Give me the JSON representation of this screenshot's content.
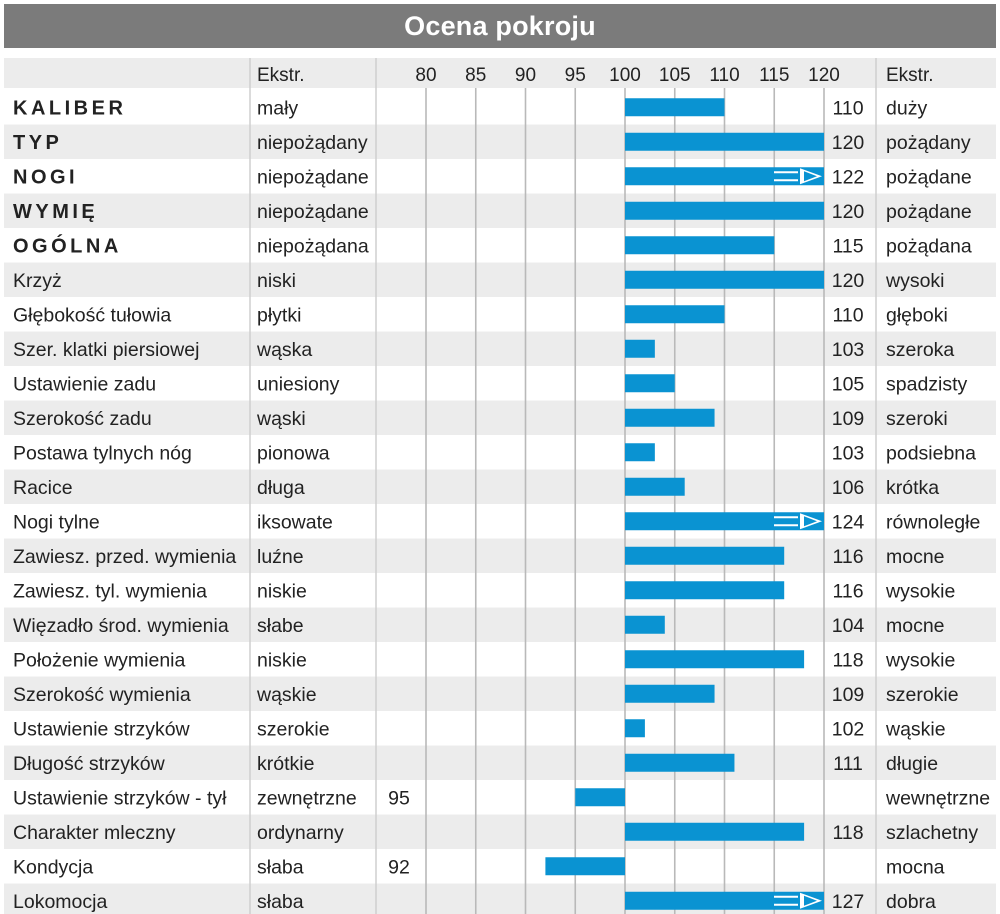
{
  "title": "Ocena pokroju",
  "header": {
    "ext_left": "Ekstr.",
    "ext_right": "Ekstr."
  },
  "colors": {
    "bar": "#0a93d2",
    "title_bg": "#7b7b7b",
    "row_alt": "#ececec",
    "grid": "#b9b9b9"
  },
  "chart_data": {
    "type": "bar",
    "orientation": "horizontal",
    "title": "Ocena pokroju",
    "xlim": [
      80,
      120
    ],
    "baseline": 100,
    "ticks": [
      80,
      85,
      90,
      95,
      100,
      105,
      110,
      115,
      120
    ],
    "tick_labels": [
      "80",
      "85",
      "90",
      "95",
      "100",
      "105",
      "110",
      "115",
      "120"
    ],
    "grid": true,
    "rows": [
      {
        "label": "KALIBER",
        "bold": true,
        "left": "mały",
        "right": "duży",
        "value": 110,
        "value_label": "110"
      },
      {
        "label": "TYP",
        "bold": true,
        "left": "niepożądany",
        "right": "pożądany",
        "value": 120,
        "value_label": "120"
      },
      {
        "label": "NOGI",
        "bold": true,
        "left": "niepożądane",
        "right": "pożądane",
        "value": 122,
        "value_label": "122",
        "overflow": true
      },
      {
        "label": "WYMIĘ",
        "bold": true,
        "left": "niepożądane",
        "right": "pożądane",
        "value": 120,
        "value_label": "120"
      },
      {
        "label": "OGÓLNA",
        "bold": true,
        "left": "niepożądana",
        "right": "pożądana",
        "value": 115,
        "value_label": "115"
      },
      {
        "label": "Krzyż",
        "bold": false,
        "left": "niski",
        "right": "wysoki",
        "value": 120,
        "value_label": "120"
      },
      {
        "label": "Głębokość tułowia",
        "bold": false,
        "left": "płytki",
        "right": "głęboki",
        "value": 110,
        "value_label": "110"
      },
      {
        "label": "Szer. klatki piersiowej",
        "bold": false,
        "left": "wąska",
        "right": "szeroka",
        "value": 103,
        "value_label": "103"
      },
      {
        "label": "Ustawienie zadu",
        "bold": false,
        "left": "uniesiony",
        "right": "spadzisty",
        "value": 105,
        "value_label": "105"
      },
      {
        "label": "Szerokość zadu",
        "bold": false,
        "left": "wąski",
        "right": "szeroki",
        "value": 109,
        "value_label": "109"
      },
      {
        "label": "Postawa tylnych nóg",
        "bold": false,
        "left": "pionowa",
        "right": "podsiebna",
        "value": 103,
        "value_label": "103"
      },
      {
        "label": "Racice",
        "bold": false,
        "left": "długa",
        "right": "krótka",
        "value": 106,
        "value_label": "106"
      },
      {
        "label": "Nogi tylne",
        "bold": false,
        "left": "iksowate",
        "right": "równoległe",
        "value": 124,
        "value_label": "124",
        "overflow": true
      },
      {
        "label": "Zawiesz. przed. wymienia",
        "bold": false,
        "left": "luźne",
        "right": "mocne",
        "value": 116,
        "value_label": "116"
      },
      {
        "label": "Zawiesz. tyl. wymienia",
        "bold": false,
        "left": "niskie",
        "right": "wysokie",
        "value": 116,
        "value_label": "116"
      },
      {
        "label": "Więzadło środ. wymienia",
        "bold": false,
        "left": "słabe",
        "right": "mocne",
        "value": 104,
        "value_label": "104"
      },
      {
        "label": "Położenie wymienia",
        "bold": false,
        "left": "niskie",
        "right": "wysokie",
        "value": 118,
        "value_label": "118"
      },
      {
        "label": "Szerokość wymienia",
        "bold": false,
        "left": "wąskie",
        "right": "szerokie",
        "value": 109,
        "value_label": "109"
      },
      {
        "label": "Ustawienie strzyków",
        "bold": false,
        "left": "szerokie",
        "right": "wąskie",
        "value": 102,
        "value_label": "102"
      },
      {
        "label": "Długość strzyków",
        "bold": false,
        "left": "krótkie",
        "right": "długie",
        "value": 111,
        "value_label": "111"
      },
      {
        "label": "Ustawienie strzyków - tył",
        "bold": false,
        "left": "zewnętrzne",
        "right": "wewnętrzne",
        "value": 95,
        "value_label": "95"
      },
      {
        "label": "Charakter mleczny",
        "bold": false,
        "left": "ordynarny",
        "right": "szlachetny",
        "value": 118,
        "value_label": "118"
      },
      {
        "label": "Kondycja",
        "bold": false,
        "left": "słaba",
        "right": "mocna",
        "value": 92,
        "value_label": "92"
      },
      {
        "label": "Lokomocja",
        "bold": false,
        "left": "słaba",
        "right": "dobra",
        "value": 127,
        "value_label": "127",
        "overflow": true
      }
    ]
  }
}
